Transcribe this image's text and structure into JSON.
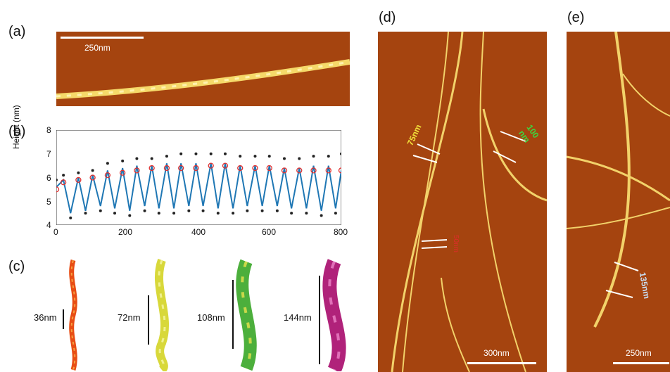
{
  "panels": {
    "a": {
      "label": "(a)",
      "scale": "250nm"
    },
    "b": {
      "label": "(b)",
      "ylabel": "Height (nm)",
      "yticks": [
        "8",
        "7",
        "6",
        "5",
        "4"
      ],
      "xticks": [
        "0",
        "200",
        "400",
        "600",
        "800"
      ]
    },
    "c": {
      "label": "(c)",
      "pitches": [
        "36nm",
        "72nm",
        "108nm",
        "144nm"
      ],
      "colors": [
        "#e84d14",
        "#d8d83a",
        "#4caf3c",
        "#b0227a"
      ]
    },
    "d": {
      "label": "(d)",
      "scale": "300nm",
      "annotations": [
        {
          "text": "75nm",
          "color": "#f2e23a"
        },
        {
          "text": "100 nm",
          "color": "#3fd43f"
        },
        {
          "text": "50nm",
          "color": "#e02b2b"
        }
      ]
    },
    "e": {
      "label": "(e)",
      "scale": "250nm",
      "annotations": [
        {
          "text": "135nm",
          "color": "#c9dff5"
        }
      ]
    }
  },
  "chart_data": {
    "type": "line",
    "xlabel": "",
    "ylabel": "Height (nm)",
    "xlim": [
      0,
      800
    ],
    "ylim": [
      4,
      8
    ],
    "series": [
      {
        "type": "scatter",
        "x": [
          0,
          20,
          40,
          62,
          82,
          102,
          124,
          144,
          164,
          186,
          206,
          226,
          248,
          268,
          288,
          310,
          330,
          350,
          372,
          392,
          412,
          434,
          454,
          474,
          496,
          516,
          536,
          558,
          578,
          598,
          620,
          640,
          660,
          682,
          702,
          722,
          744,
          764,
          784,
          800
        ],
        "y": [
          5.9,
          6.1,
          4.3,
          6.2,
          4.5,
          6.3,
          4.6,
          6.6,
          4.5,
          6.7,
          4.4,
          6.8,
          4.6,
          6.8,
          4.5,
          6.9,
          4.5,
          7.0,
          4.6,
          7.0,
          4.6,
          7.0,
          4.5,
          7.0,
          4.5,
          6.9,
          4.6,
          6.9,
          4.6,
          6.9,
          4.6,
          6.8,
          4.5,
          6.8,
          4.5,
          6.9,
          4.4,
          6.9,
          4.5,
          7.0
        ]
      },
      {
        "type": "line",
        "x": [
          0,
          20,
          40,
          62,
          82,
          102,
          124,
          144,
          164,
          186,
          206,
          226,
          248,
          268,
          288,
          310,
          330,
          350,
          372,
          392,
          412,
          434,
          454,
          474,
          496,
          516,
          536,
          558,
          578,
          598,
          620,
          640,
          660,
          682,
          702,
          722,
          744,
          764,
          784,
          800
        ],
        "y": [
          5.6,
          5.9,
          4.5,
          6.0,
          4.6,
          6.1,
          4.8,
          6.3,
          4.7,
          6.4,
          4.6,
          6.5,
          4.8,
          6.5,
          4.7,
          6.6,
          4.7,
          6.6,
          4.8,
          6.6,
          4.8,
          6.6,
          4.7,
          6.6,
          4.7,
          6.5,
          4.8,
          6.5,
          4.8,
          6.5,
          4.8,
          6.4,
          4.7,
          6.4,
          4.7,
          6.5,
          4.6,
          6.5,
          4.7,
          6.3
        ]
      },
      {
        "type": "scatter",
        "x": [
          0,
          20,
          62,
          102,
          144,
          186,
          226,
          268,
          310,
          350,
          392,
          434,
          474,
          516,
          558,
          598,
          640,
          682,
          722,
          764,
          800
        ],
        "y": [
          5.5,
          5.8,
          5.9,
          6.0,
          6.1,
          6.2,
          6.3,
          6.4,
          6.4,
          6.4,
          6.4,
          6.5,
          6.5,
          6.4,
          6.4,
          6.4,
          6.3,
          6.3,
          6.3,
          6.3,
          6.3
        ]
      }
    ]
  }
}
